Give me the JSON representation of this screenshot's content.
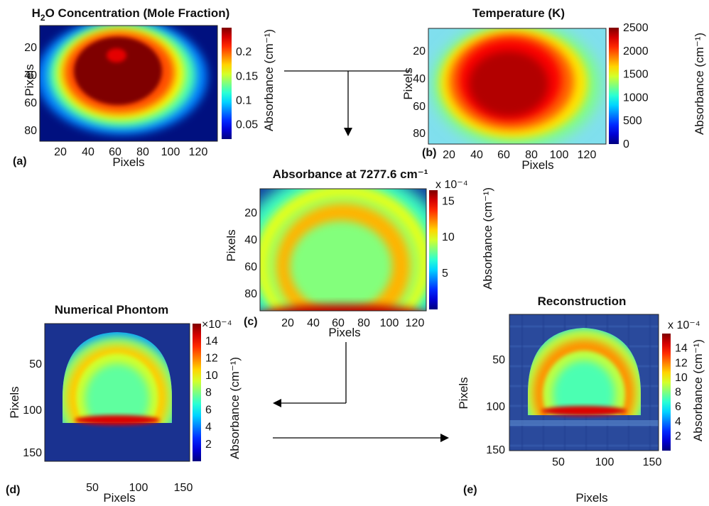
{
  "colormap": [
    "#00007f",
    "#0000ff",
    "#007fff",
    "#00ffff",
    "#7fff7f",
    "#ffff00",
    "#ff7f00",
    "#ff0000",
    "#7f0000"
  ],
  "colors": {
    "arrow": "#000000",
    "text": "#111111"
  },
  "chart_data": [
    {
      "id": "a",
      "type": "heatmap",
      "panel_label": "(a)",
      "title_main": "H",
      "title_sub": "2",
      "title_rest": "O Concentration (Mole Fraction)",
      "xlabel": "Pixels",
      "ylabel": "Pixels",
      "x_ticks": [
        "20",
        "40",
        "60",
        "80",
        "100",
        "120"
      ],
      "y_ticks": [
        "20",
        "40",
        "60",
        "80"
      ],
      "xlim": [
        0,
        128
      ],
      "ylim": [
        90,
        0
      ],
      "colorbar_label": "Absorbance (cm⁻¹)",
      "colorbar_ticks": [
        "0.2",
        "0.15",
        "0.1",
        "0.05"
      ],
      "colorbar_tick_values": [
        0.2,
        0.15,
        0.1,
        0.05
      ],
      "colorbar_range": [
        0.02,
        0.25
      ],
      "colorbar_multiplier": "",
      "peak_value": 0.25
    },
    {
      "id": "b",
      "type": "heatmap",
      "panel_label": "(b)",
      "title": "Temperature (K)",
      "xlabel": "Pixels",
      "ylabel": "Pixels",
      "x_ticks": [
        "20",
        "40",
        "60",
        "80",
        "100",
        "120"
      ],
      "y_ticks": [
        "20",
        "40",
        "60",
        "80"
      ],
      "xlim": [
        0,
        128
      ],
      "ylim": [
        90,
        0
      ],
      "colorbar_label": "Absorbance (cm⁻¹)",
      "colorbar_ticks": [
        "2500",
        "2000",
        "1500",
        "1000",
        "500",
        "0"
      ],
      "colorbar_tick_values": [
        2500,
        2000,
        1500,
        1000,
        500,
        0
      ],
      "colorbar_range": [
        0,
        2500
      ],
      "colorbar_multiplier": "",
      "peak_value": 2500
    },
    {
      "id": "c",
      "type": "heatmap",
      "panel_label": "(c)",
      "title": "Absorbance at 7277.6 cm⁻¹",
      "xlabel": "Pixels",
      "ylabel": "Pixels",
      "x_ticks": [
        "20",
        "40",
        "60",
        "80",
        "100",
        "120"
      ],
      "y_ticks": [
        "20",
        "40",
        "60",
        "80"
      ],
      "xlim": [
        0,
        128
      ],
      "ylim": [
        90,
        0
      ],
      "colorbar_label": "Absorbance (cm⁻¹)",
      "colorbar_ticks": [
        "15",
        "10",
        "5"
      ],
      "colorbar_tick_values": [
        15,
        10,
        5
      ],
      "colorbar_range": [
        0,
        16.5
      ],
      "colorbar_multiplier": "x 10⁻⁴",
      "peak_value": 16
    },
    {
      "id": "d",
      "type": "heatmap",
      "panel_label": "(d)",
      "title": "Numerical Phontom",
      "xlabel": "Pixels",
      "ylabel": "Pixels",
      "x_ticks": [
        "50",
        "100",
        "150"
      ],
      "y_ticks": [
        "50",
        "100",
        "150"
      ],
      "xlim": [
        0,
        155
      ],
      "ylim": [
        155,
        0
      ],
      "colorbar_label": "Absorbance (cm⁻¹)",
      "colorbar_ticks": [
        "14",
        "12",
        "10",
        "8",
        "6",
        "4",
        "2"
      ],
      "colorbar_tick_values": [
        14,
        12,
        10,
        8,
        6,
        4,
        2
      ],
      "colorbar_range": [
        0,
        16
      ],
      "colorbar_multiplier": "×10⁻⁴",
      "peak_value": 15
    },
    {
      "id": "e",
      "type": "heatmap",
      "panel_label": "(e)",
      "title": "Reconstruction",
      "xlabel": "Pixels",
      "ylabel": "Pixels",
      "x_ticks": [
        "50",
        "100",
        "150"
      ],
      "y_ticks": [
        "50",
        "100",
        "150"
      ],
      "xlim": [
        0,
        155
      ],
      "ylim": [
        155,
        0
      ],
      "colorbar_label": "Absorbance (cm⁻¹)",
      "colorbar_ticks": [
        "14",
        "12",
        "10",
        "8",
        "6",
        "4",
        "2"
      ],
      "colorbar_tick_values": [
        14,
        12,
        10,
        8,
        6,
        4,
        2
      ],
      "colorbar_range": [
        0,
        16
      ],
      "colorbar_multiplier": "x 10⁻⁴",
      "peak_value": 15
    }
  ]
}
